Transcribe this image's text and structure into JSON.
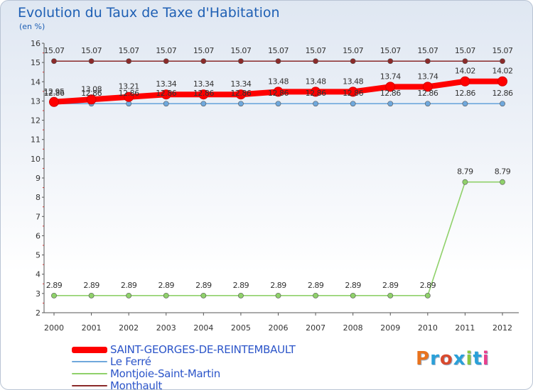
{
  "title": "Evolution du Taux de Taxe d'Habitation",
  "unit": "(en %)",
  "logo": {
    "text": "Proxiti",
    "letter_colors": [
      "#e8731e",
      "#2aa0d8",
      "#d84a2e",
      "#2aa0d8",
      "#8cc63f",
      "#2aa0d8",
      "#e83e8c"
    ]
  },
  "chart_data": {
    "type": "line",
    "x": [
      "2000",
      "2001",
      "2002",
      "2003",
      "2004",
      "2005",
      "2006",
      "2007",
      "2008",
      "2009",
      "2010",
      "2011",
      "2012"
    ],
    "y_ticks": [
      "2",
      "3",
      "4",
      "5",
      "6",
      "7",
      "8",
      "9",
      "10",
      "11",
      "12",
      "13",
      "14",
      "15",
      "16"
    ],
    "ylim": [
      2,
      16
    ],
    "grid": false,
    "legend_placement": "bottom-left",
    "series": [
      {
        "name": "SAINT-GEORGES-DE-REINTEMBAULT",
        "color": "#ff0000",
        "emphasis": true,
        "values": [
          12.95,
          13.08,
          13.21,
          13.34,
          13.34,
          13.34,
          13.48,
          13.48,
          13.48,
          13.74,
          13.74,
          14.02,
          14.02
        ],
        "labels": [
          "12.95",
          "13.08",
          "13.21",
          "13.34",
          "13.34",
          "13.34",
          "13.48",
          "13.48",
          "13.48",
          "13.74",
          "13.74",
          "14.02",
          "14.02"
        ]
      },
      {
        "name": "Le Ferré",
        "color": "#6fa8dc",
        "emphasis": false,
        "values": [
          12.86,
          12.86,
          12.86,
          12.86,
          12.86,
          12.86,
          12.86,
          12.86,
          12.86,
          12.86,
          12.86,
          12.86,
          12.86
        ],
        "labels": [
          "12.86",
          "12.86",
          "12.86",
          "12.86",
          "12.86",
          "12.86",
          "12.86",
          "12.86",
          "12.86",
          "12.86",
          "12.86",
          "12.86",
          "12.86"
        ]
      },
      {
        "name": "Montjoie-Saint-Martin",
        "color": "#8fd16a",
        "emphasis": false,
        "values": [
          2.89,
          2.89,
          2.89,
          2.89,
          2.89,
          2.89,
          2.89,
          2.89,
          2.89,
          2.89,
          2.89,
          8.79,
          8.79
        ],
        "labels": [
          "2.89",
          "2.89",
          "2.89",
          "2.89",
          "2.89",
          "2.89",
          "2.89",
          "2.89",
          "2.89",
          "2.89",
          "2.89",
          "8.79",
          "8.79"
        ]
      },
      {
        "name": "Monthault",
        "color": "#8b2a2a",
        "emphasis": false,
        "values": [
          15.07,
          15.07,
          15.07,
          15.07,
          15.07,
          15.07,
          15.07,
          15.07,
          15.07,
          15.07,
          15.07,
          15.07,
          15.07
        ],
        "labels": [
          "15.07",
          "15.07",
          "15.07",
          "15.07",
          "15.07",
          "15.07",
          "15.07",
          "15.07",
          "15.07",
          "15.07",
          "15.07",
          "15.07",
          "15.07"
        ]
      }
    ]
  }
}
